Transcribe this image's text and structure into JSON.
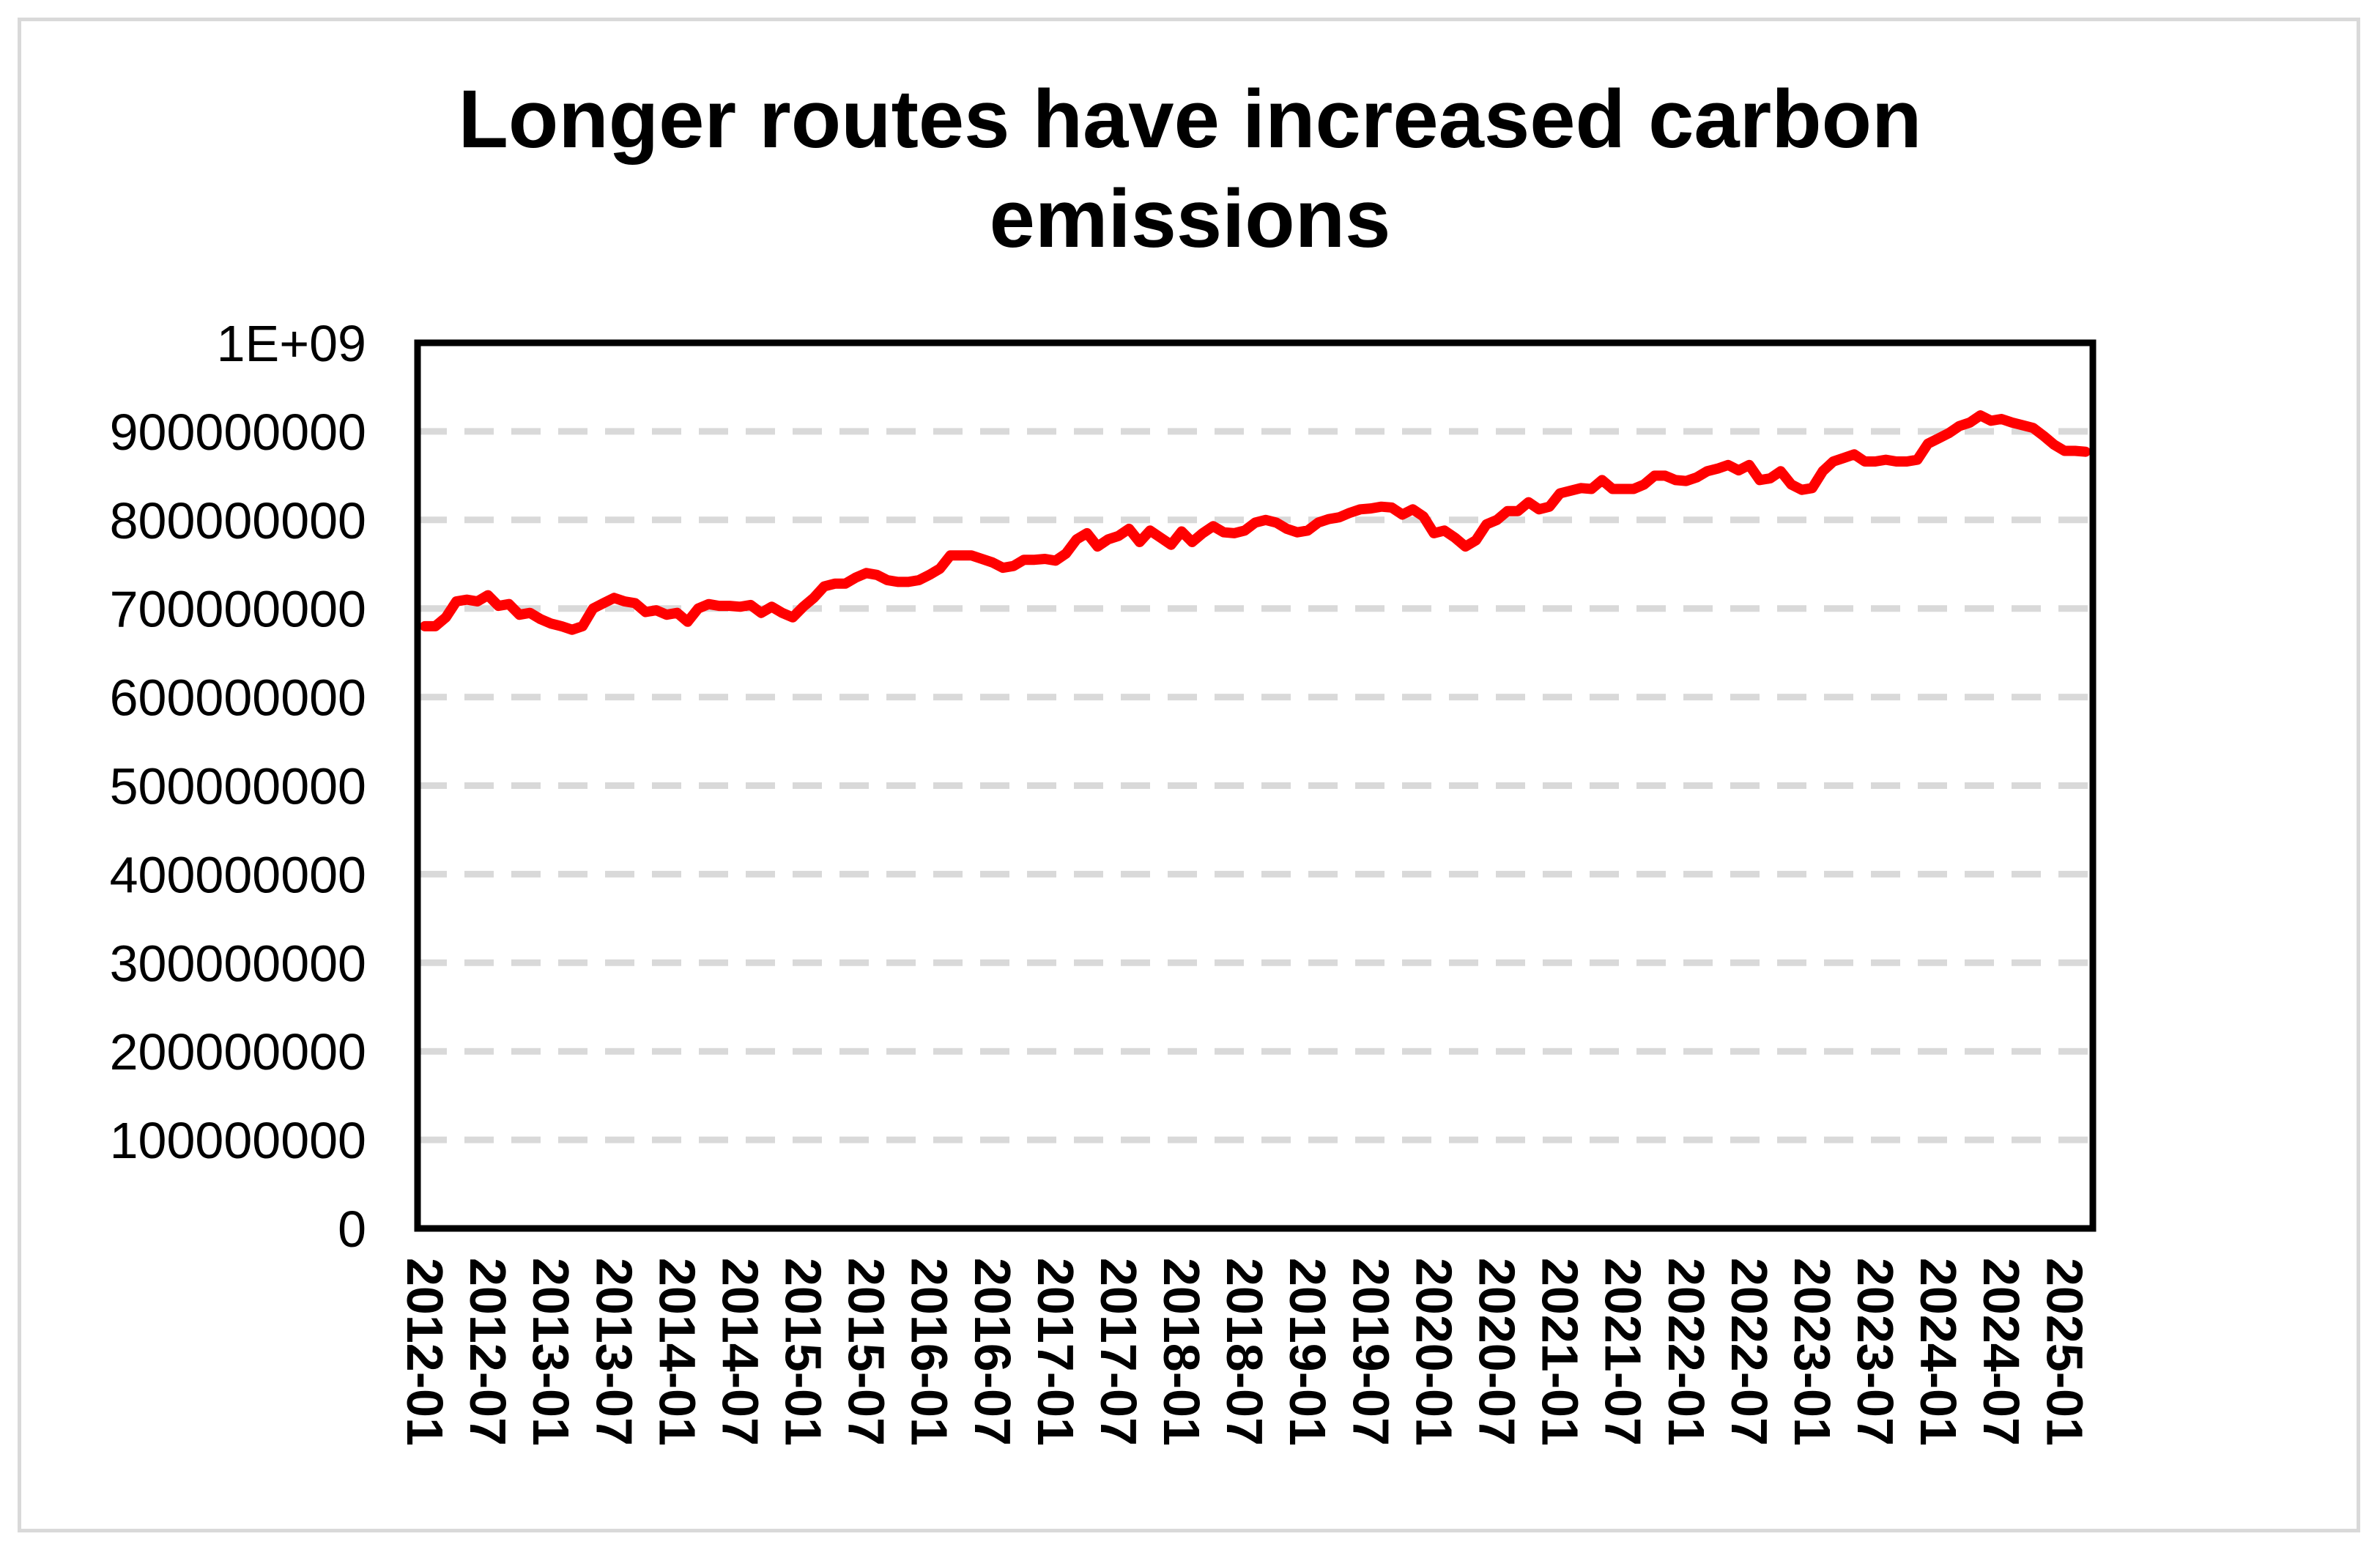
{
  "chart_data": {
    "type": "line",
    "title": "Longer routes have increased carbon emissions",
    "xlabel": "",
    "ylabel": "",
    "ylim": [
      0,
      1000000000
    ],
    "y_ticks": [
      "0",
      "100000000",
      "200000000",
      "300000000",
      "400000000",
      "500000000",
      "600000000",
      "700000000",
      "800000000",
      "900000000",
      "1E+09"
    ],
    "x_tick_labels": [
      "2012-01",
      "2012-07",
      "2013-01",
      "2013-07",
      "2014-01",
      "2014-07",
      "2015-01",
      "2015-07",
      "2016-01",
      "2016-07",
      "2017-01",
      "2017-07",
      "2018-01",
      "2018-07",
      "2019-01",
      "2019-07",
      "2020-01",
      "2020-07",
      "2021-01",
      "2021-07",
      "2022-01",
      "2022-07",
      "2023-01",
      "2023-07",
      "2024-01",
      "2024-07",
      "2025-01"
    ],
    "grid": true,
    "legend": "none",
    "colors": {
      "line": "#ff0000",
      "grid": "#d9d9d9",
      "axis": "#000000",
      "border": "#d9d9d9"
    },
    "series": [
      {
        "x": [
          "2012-01",
          "2012-02",
          "2012-03",
          "2012-04",
          "2012-05",
          "2012-06",
          "2012-07",
          "2012-08",
          "2012-09",
          "2012-10",
          "2012-11",
          "2012-12",
          "2013-01",
          "2013-02",
          "2013-03",
          "2013-04",
          "2013-05",
          "2013-06",
          "2013-07",
          "2013-08",
          "2013-09",
          "2013-10",
          "2013-11",
          "2013-12",
          "2014-01",
          "2014-02",
          "2014-03",
          "2014-04",
          "2014-05",
          "2014-06",
          "2014-07",
          "2014-08",
          "2014-09",
          "2014-10",
          "2014-11",
          "2014-12",
          "2015-01",
          "2015-02",
          "2015-03",
          "2015-04",
          "2015-05",
          "2015-06",
          "2015-07",
          "2015-08",
          "2015-09",
          "2015-10",
          "2015-11",
          "2015-12",
          "2016-01",
          "2016-02",
          "2016-03",
          "2016-04",
          "2016-05",
          "2016-06",
          "2016-07",
          "2016-08",
          "2016-09",
          "2016-10",
          "2016-11",
          "2016-12",
          "2017-01",
          "2017-02",
          "2017-03",
          "2017-04",
          "2017-05",
          "2017-06",
          "2017-07",
          "2017-08",
          "2017-09",
          "2017-10",
          "2017-11",
          "2017-12",
          "2018-01",
          "2018-02",
          "2018-03",
          "2018-04",
          "2018-05",
          "2018-06",
          "2018-07",
          "2018-08",
          "2018-09",
          "2018-10",
          "2018-11",
          "2018-12",
          "2019-01",
          "2019-02",
          "2019-03",
          "2019-04",
          "2019-05",
          "2019-06",
          "2019-07",
          "2019-08",
          "2019-09",
          "2019-10",
          "2019-11",
          "2019-12",
          "2020-01",
          "2020-02",
          "2020-03",
          "2020-04",
          "2020-05",
          "2020-06",
          "2020-07",
          "2020-08",
          "2020-09",
          "2020-10",
          "2020-11",
          "2020-12",
          "2021-01",
          "2021-02",
          "2021-03",
          "2021-04",
          "2021-05",
          "2021-06",
          "2021-07",
          "2021-08",
          "2021-09",
          "2021-10",
          "2021-11",
          "2021-12",
          "2022-01",
          "2022-02",
          "2022-03",
          "2022-04",
          "2022-05",
          "2022-06",
          "2022-07",
          "2022-08",
          "2022-09",
          "2022-10",
          "2022-11",
          "2022-12",
          "2023-01",
          "2023-02",
          "2023-03",
          "2023-04",
          "2023-05",
          "2023-06",
          "2023-07",
          "2023-08",
          "2023-09",
          "2023-10",
          "2023-11",
          "2023-12",
          "2024-01",
          "2024-02",
          "2024-03",
          "2024-04",
          "2024-05",
          "2024-06",
          "2024-07",
          "2024-08",
          "2024-09",
          "2024-10",
          "2024-11",
          "2024-12",
          "2025-01",
          "2025-02",
          "2025-03"
        ],
        "values": [
          680000000,
          680000000,
          690000000,
          708000000,
          710000000,
          708000000,
          715000000,
          703000000,
          705000000,
          693000000,
          695000000,
          688000000,
          683000000,
          680000000,
          676000000,
          680000000,
          700000000,
          706000000,
          712000000,
          708000000,
          706000000,
          696000000,
          698000000,
          693000000,
          695000000,
          685000000,
          700000000,
          705000000,
          703000000,
          703000000,
          702000000,
          704000000,
          695000000,
          702000000,
          695000000,
          690000000,
          702000000,
          712000000,
          725000000,
          728000000,
          728000000,
          735000000,
          740000000,
          738000000,
          732000000,
          730000000,
          730000000,
          732000000,
          738000000,
          745000000,
          760000000,
          760000000,
          760000000,
          756000000,
          752000000,
          746000000,
          748000000,
          755000000,
          755000000,
          756000000,
          754000000,
          762000000,
          778000000,
          785000000,
          770000000,
          778000000,
          782000000,
          790000000,
          775000000,
          788000000,
          780000000,
          772000000,
          787000000,
          775000000,
          785000000,
          793000000,
          786000000,
          785000000,
          788000000,
          797000000,
          800000000,
          797000000,
          790000000,
          786000000,
          788000000,
          797000000,
          801000000,
          803000000,
          808000000,
          812000000,
          813000000,
          815000000,
          814000000,
          806000000,
          812000000,
          804000000,
          785000000,
          788000000,
          780000000,
          770000000,
          777000000,
          795000000,
          800000000,
          810000000,
          810000000,
          820000000,
          812000000,
          815000000,
          830000000,
          833000000,
          836000000,
          835000000,
          845000000,
          835000000,
          835000000,
          835000000,
          840000000,
          850000000,
          850000000,
          845000000,
          844000000,
          848000000,
          855000000,
          858000000,
          862000000,
          856000000,
          862000000,
          845000000,
          847000000,
          855000000,
          840000000,
          834000000,
          836000000,
          855000000,
          866000000,
          870000000,
          874000000,
          866000000,
          866000000,
          868000000,
          866000000,
          866000000,
          868000000,
          886000000,
          892000000,
          898000000,
          906000000,
          910000000,
          918000000,
          912000000,
          914000000,
          910000000,
          907000000,
          904000000,
          895000000,
          885000000,
          878000000,
          878000000,
          877000000
        ]
      }
    ]
  }
}
